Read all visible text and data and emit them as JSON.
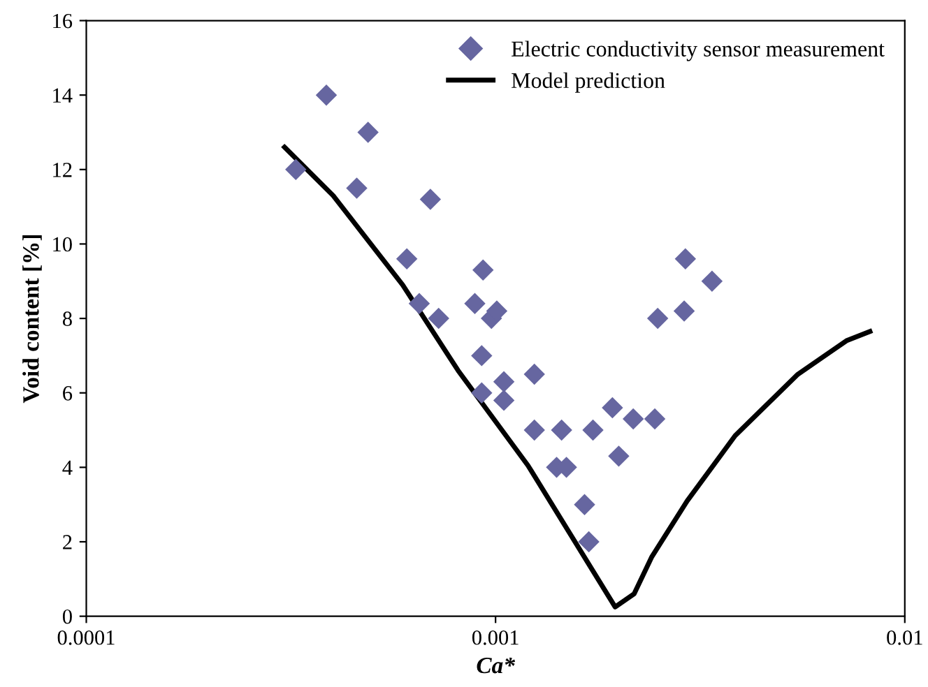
{
  "chart_data": {
    "type": "scatter",
    "xlabel": "Ca*",
    "ylabel": "Void content [%]",
    "log": "x",
    "grid": false,
    "legend": "top right",
    "xlim": [
      0.0001,
      0.01
    ],
    "xticks": [
      {
        "value": 0.0001,
        "label": "0.0001"
      },
      {
        "value": 0.001,
        "label": "0.001"
      },
      {
        "value": 0.01,
        "label": "0.01"
      }
    ],
    "ylim": [
      0,
      16
    ],
    "yticks": [
      0,
      2,
      4,
      6,
      8,
      10,
      12,
      14,
      16
    ],
    "series": [
      {
        "name": "Electric conductivity sensor measurement",
        "marker": "diamond",
        "color": "#6666a0",
        "x": [
          0.000325,
          0.000386,
          0.000458,
          0.000488,
          0.000607,
          0.000651,
          0.000693,
          0.000726,
          0.00089,
          0.000932,
          0.000925,
          0.000925,
          0.000977,
          0.001007,
          0.001048,
          0.001048,
          0.001244,
          0.001244,
          0.00141,
          0.00145,
          0.00149,
          0.00165,
          0.00169,
          0.00173,
          0.00193,
          0.002,
          0.00217,
          0.00245,
          0.00249,
          0.00289,
          0.00291,
          0.00338
        ],
        "values": [
          12,
          14,
          11.5,
          13,
          9.6,
          8.4,
          11.2,
          8,
          8.4,
          9.3,
          7,
          6,
          8,
          8.2,
          6.3,
          5.8,
          6.5,
          5,
          4,
          5,
          4,
          3,
          2,
          5,
          5.6,
          4.3,
          5.3,
          5.3,
          8,
          8.2,
          9.6,
          9
        ]
      },
      {
        "name": "Model prediction",
        "type": "line",
        "marker": "none",
        "line_style": "solid",
        "color": "#000000",
        "x": [
          0.000305,
          0.000401,
          0.000593,
          0.00081,
          0.0012,
          0.00196,
          0.00218,
          0.00241,
          0.00294,
          0.00385,
          0.00548,
          0.0072,
          0.00822
        ],
        "values": [
          12.6,
          11.3,
          8.9,
          6.6,
          4.05,
          0.25,
          0.6,
          1.6,
          3.1,
          4.85,
          6.5,
          7.4,
          7.65
        ]
      }
    ]
  }
}
